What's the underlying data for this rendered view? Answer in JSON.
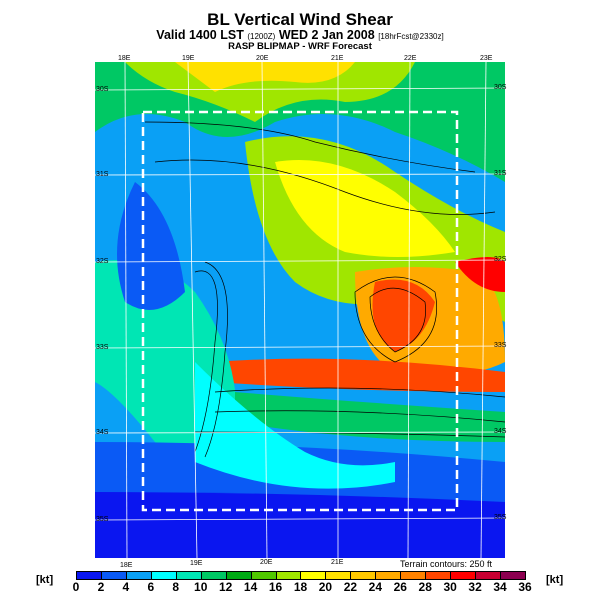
{
  "header": {
    "title": "BL Vertical Wind Shear",
    "valid": "Valid 1400 LST",
    "valid_small": "(1200Z)",
    "date": "WED 2 Jan 2008",
    "fcst": "[18hrFcst@2330z]",
    "subtitle": "RASP BLIPMAP - WRF Forecast"
  },
  "axes": {
    "top_lon": [
      "18E",
      "19E",
      "20E",
      "21E",
      "22E",
      "23E"
    ],
    "bottom_lon": [
      "18E",
      "19E",
      "20E",
      "21E"
    ],
    "left_lat": [
      "30S",
      "31S",
      "32S",
      "33S",
      "34S",
      "35S"
    ],
    "right_lat": [
      "30S",
      "31S",
      "32S",
      "33S",
      "34S",
      "35S"
    ]
  },
  "terrain_note": "Terrain contours: 250 ft",
  "colorbar": {
    "unit": "[kt]",
    "labels": [
      "0",
      "2",
      "4",
      "6",
      "8",
      "10",
      "12",
      "14",
      "16",
      "18",
      "20",
      "22",
      "24",
      "26",
      "28",
      "30",
      "32",
      "34",
      "36"
    ],
    "colors": [
      "#0a16f0",
      "#0a5af5",
      "#0aa0f5",
      "#00ffff",
      "#00e6b4",
      "#00c864",
      "#00aa14",
      "#50c800",
      "#a0e600",
      "#ffff00",
      "#ffe100",
      "#ffc800",
      "#ffaa00",
      "#ff8200",
      "#ff4600",
      "#ff0000",
      "#c80032",
      "#8c0050"
    ]
  }
}
